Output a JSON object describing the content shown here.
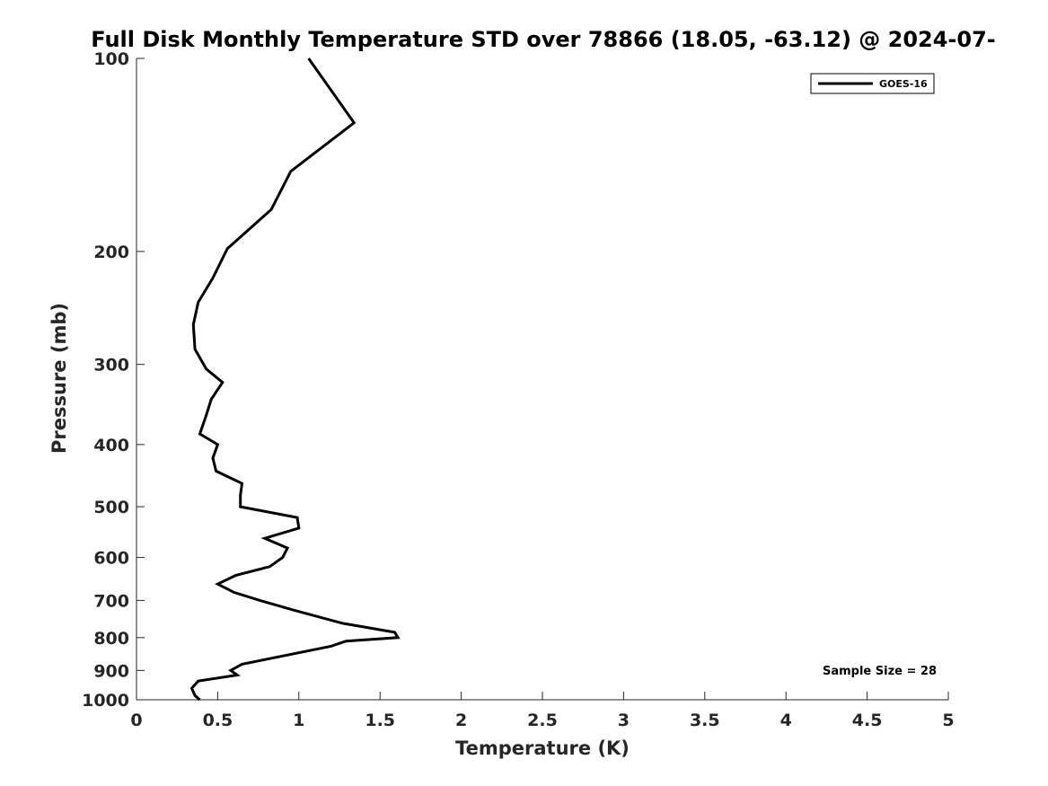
{
  "chart_data": {
    "type": "line",
    "title": "Full Disk Monthly Temperature STD over 78866 (18.05, -63.12) @ 2024-07-",
    "xlabel": "Temperature (K)",
    "ylabel": "Pressure (mb)",
    "xlim": [
      0,
      5
    ],
    "ylim": [
      100,
      1000
    ],
    "y_scale": "log",
    "y_direction": "reversed",
    "x_ticks": [
      "0",
      "0.5",
      "1",
      "1.5",
      "2",
      "2.5",
      "3",
      "3.5",
      "4",
      "4.5",
      "5"
    ],
    "y_ticks": [
      "100",
      "200",
      "300",
      "400",
      "500",
      "600",
      "700",
      "800",
      "900",
      "1000"
    ],
    "grid": false,
    "legend": {
      "position": "top-right",
      "entries": [
        "GOES-16"
      ]
    },
    "annotation": "Sample Size = 28",
    "series": [
      {
        "name": "GOES-16",
        "color": "#000000",
        "points": [
          [
            1.06,
            100
          ],
          [
            1.34,
            126
          ],
          [
            0.95,
            150
          ],
          [
            0.83,
            172
          ],
          [
            0.56,
            198
          ],
          [
            0.47,
            220
          ],
          [
            0.38,
            240
          ],
          [
            0.35,
            260
          ],
          [
            0.36,
            284
          ],
          [
            0.43,
            305
          ],
          [
            0.53,
            320
          ],
          [
            0.46,
            340
          ],
          [
            0.43,
            360
          ],
          [
            0.39,
            385
          ],
          [
            0.5,
            400
          ],
          [
            0.47,
            420
          ],
          [
            0.49,
            440
          ],
          [
            0.65,
            460
          ],
          [
            0.64,
            480
          ],
          [
            0.64,
            500
          ],
          [
            0.99,
            520
          ],
          [
            1.0,
            540
          ],
          [
            0.79,
            560
          ],
          [
            0.93,
            580
          ],
          [
            0.9,
            600
          ],
          [
            0.82,
            620
          ],
          [
            0.61,
            640
          ],
          [
            0.5,
            660
          ],
          [
            0.6,
            680
          ],
          [
            0.76,
            700
          ],
          [
            0.97,
            725
          ],
          [
            1.27,
            760
          ],
          [
            1.59,
            785
          ],
          [
            1.61,
            800
          ],
          [
            1.29,
            810
          ],
          [
            1.2,
            825
          ],
          [
            0.65,
            880
          ],
          [
            0.58,
            900
          ],
          [
            0.62,
            915
          ],
          [
            0.38,
            935
          ],
          [
            0.34,
            960
          ],
          [
            0.36,
            985
          ],
          [
            0.39,
            1000
          ]
        ]
      }
    ]
  }
}
